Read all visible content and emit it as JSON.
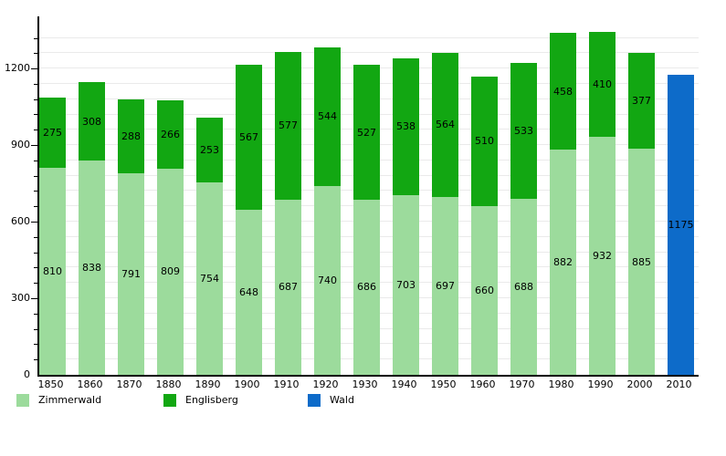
{
  "chart_data": {
    "type": "bar",
    "stacked": true,
    "title": "",
    "xlabel": "",
    "ylabel": "",
    "categories": [
      "1850",
      "1860",
      "1870",
      "1880",
      "1890",
      "1900",
      "1910",
      "1920",
      "1930",
      "1940",
      "1950",
      "1960",
      "1970",
      "1980",
      "1990",
      "2000",
      "2010"
    ],
    "series": [
      {
        "name": "Zimmerwald",
        "color": "#9cdb9c",
        "values": [
          810,
          838,
          791,
          809,
          754,
          648,
          687,
          740,
          686,
          703,
          697,
          660,
          688,
          882,
          932,
          885,
          null
        ]
      },
      {
        "name": "Englisberg",
        "color": "#12a712",
        "values": [
          275,
          308,
          288,
          266,
          253,
          567,
          577,
          544,
          527,
          538,
          564,
          510,
          533,
          458,
          410,
          377,
          null
        ]
      },
      {
        "name": "Wald",
        "color": "#0d6bc9",
        "values": [
          null,
          null,
          null,
          null,
          null,
          null,
          null,
          null,
          null,
          null,
          null,
          null,
          null,
          null,
          null,
          null,
          1175
        ]
      }
    ],
    "ylim": [
      0,
      1404
    ],
    "yticks": [
      0,
      300,
      600,
      900,
      1200
    ],
    "minor_grid_step": 60,
    "grid": true,
    "grid_color": "#eaeaea",
    "axis_color": "#000000",
    "value_label_color": "#000000",
    "legend_position": "bottom",
    "legend_x_positions": [
      18,
      179,
      337
    ]
  }
}
